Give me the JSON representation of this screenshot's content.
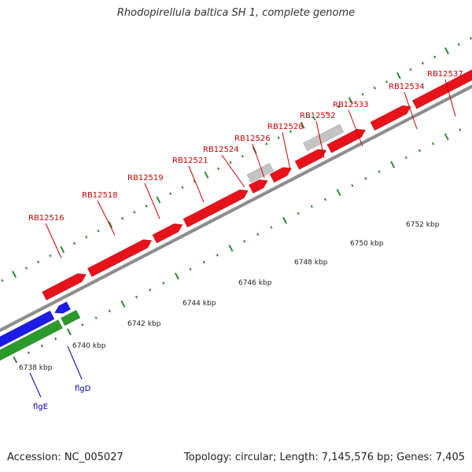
{
  "title": "Rhodopirellula baltica SH 1, complete genome",
  "footer": {
    "accession": "Accession: NC_005027",
    "summary": "Topology: circular; Length: 7,145,576 bp; Genes: 7,405"
  },
  "colors": {
    "forward_cds": "#e8121a",
    "reverse_cds": "#1c1ce6",
    "gene_track": "#2a9a2a",
    "pseudo": "#c4c4c4",
    "backbone": "#8c8c8c",
    "tick": "#2d8a2d",
    "gene_label": "#cc0000",
    "reverse_label": "#0000aa"
  },
  "scale_labels": [
    "6738 kbp",
    "6740 kbp",
    "6742 kbp",
    "6744 kbp",
    "6746 kbp",
    "6748 kbp",
    "6750 kbp",
    "6752 kbp"
  ],
  "forward_gene_labels": [
    "RB12516",
    "RB12518",
    "RB12519",
    "RB12521",
    "RB12524",
    "RB12526",
    "RB12528",
    "RB12532",
    "RB12533",
    "RB12534",
    "RB12537"
  ],
  "reverse_gene_labels": [
    "flgE",
    "flgD"
  ]
}
